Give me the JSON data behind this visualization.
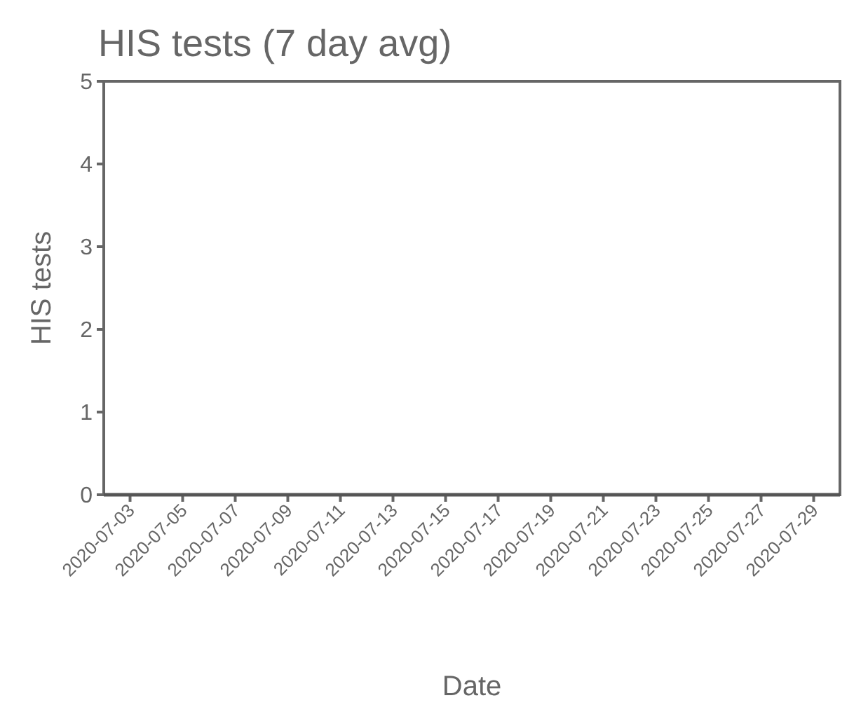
{
  "chart_data": {
    "type": "line",
    "title": "HIS tests (7 day avg)",
    "xlabel": "Date",
    "ylabel": "HIS tests",
    "x": [
      "2020-07-02",
      "2020-07-03",
      "2020-07-04",
      "2020-07-05",
      "2020-07-06",
      "2020-07-07",
      "2020-07-08",
      "2020-07-09",
      "2020-07-10",
      "2020-07-11",
      "2020-07-12",
      "2020-07-13",
      "2020-07-14",
      "2020-07-15",
      "2020-07-16",
      "2020-07-17",
      "2020-07-18",
      "2020-07-19",
      "2020-07-20",
      "2020-07-21",
      "2020-07-22",
      "2020-07-23",
      "2020-07-24",
      "2020-07-25",
      "2020-07-26",
      "2020-07-27",
      "2020-07-28",
      "2020-07-29",
      "2020-07-30"
    ],
    "series": [
      {
        "color": "#555555",
        "values": [
          0,
          0,
          0,
          0,
          0,
          0,
          0,
          0,
          0,
          0,
          0,
          0,
          0,
          0,
          0,
          0,
          0,
          0,
          0,
          0,
          0,
          0,
          0,
          0,
          0,
          0,
          0,
          0,
          0
        ]
      }
    ],
    "xlim": [
      "2020-07-02",
      "2020-07-30"
    ],
    "xticks": [
      {
        "value": "2020-07-03",
        "label": "2020-07-03"
      },
      {
        "value": "2020-07-05",
        "label": "2020-07-05"
      },
      {
        "value": "2020-07-07",
        "label": "2020-07-07"
      },
      {
        "value": "2020-07-09",
        "label": "2020-07-09"
      },
      {
        "value": "2020-07-11",
        "label": "2020-07-11"
      },
      {
        "value": "2020-07-13",
        "label": "2020-07-13"
      },
      {
        "value": "2020-07-15",
        "label": "2020-07-15"
      },
      {
        "value": "2020-07-17",
        "label": "2020-07-17"
      },
      {
        "value": "2020-07-19",
        "label": "2020-07-19"
      },
      {
        "value": "2020-07-21",
        "label": "2020-07-21"
      },
      {
        "value": "2020-07-23",
        "label": "2020-07-23"
      },
      {
        "value": "2020-07-25",
        "label": "2020-07-25"
      },
      {
        "value": "2020-07-27",
        "label": "2020-07-27"
      },
      {
        "value": "2020-07-29",
        "label": "2020-07-29"
      }
    ],
    "ylim": [
      0,
      5
    ],
    "yticks": [
      0,
      1,
      2,
      3,
      4,
      5
    ],
    "grid": false,
    "marker": "none",
    "line_style": "solid"
  }
}
